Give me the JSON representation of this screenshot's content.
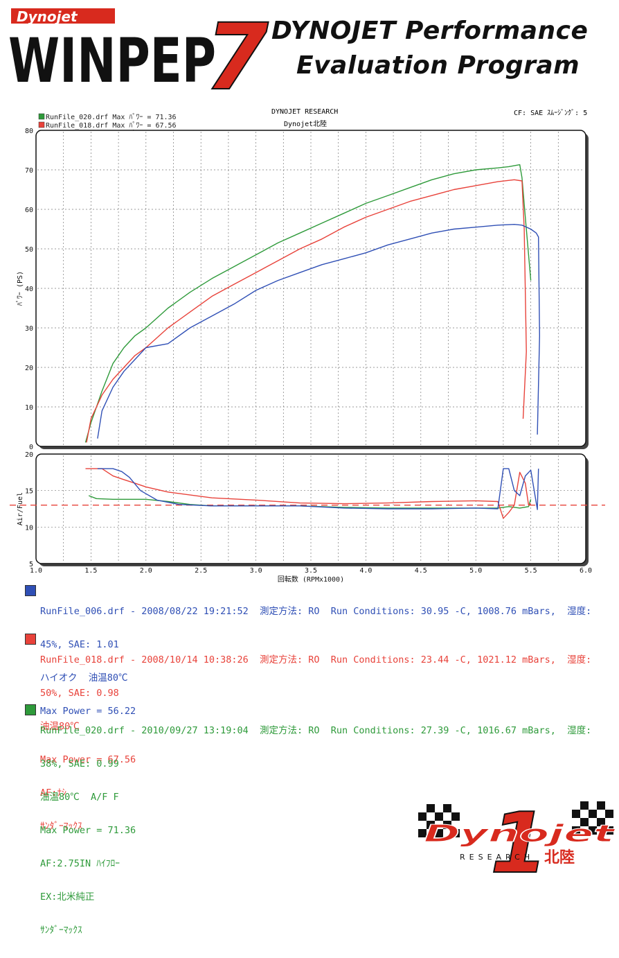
{
  "header": {
    "logo_small": "Dynojet",
    "logo_big": "WINPEP",
    "logo_number": "7",
    "tagline_line1": "DYNOJET Performance",
    "tagline_line2": "Evaluation Program"
  },
  "report": {
    "research": "DYNOJET  RESEARCH",
    "shop": "Dynojet北陸",
    "cf": "CF: SAE  ｽﾑｰｼﾞﾝｸﾞ: 5"
  },
  "legend": [
    {
      "label": "RunFile_020.drf Max ﾊﾟﾜｰ = 71.36",
      "color": "#2e9a3a"
    },
    {
      "label": "RunFile_018.drf Max ﾊﾟﾜｰ = 67.56",
      "color": "#e8423a"
    },
    {
      "label": "RunFile_006.drf Max ﾊﾟﾜｰ = 56.22",
      "color": "#2f4fb5"
    }
  ],
  "chart_data": [
    {
      "type": "line",
      "ylabel": "ﾊﾟﾜｰ (PS)",
      "xlim": [
        1.0,
        6.0
      ],
      "ylim": [
        0,
        80
      ],
      "grid": true,
      "y_ticks": [
        "0",
        "10",
        "20",
        "30",
        "40",
        "50",
        "60",
        "70",
        "80"
      ],
      "series": [
        {
          "name": "RunFile_020.drf",
          "color": "#2e9a3a",
          "x": [
            1.45,
            1.5,
            1.6,
            1.7,
            1.8,
            1.9,
            2.0,
            2.2,
            2.4,
            2.6,
            2.8,
            3.0,
            3.2,
            3.4,
            3.6,
            3.8,
            4.0,
            4.2,
            4.4,
            4.6,
            4.8,
            5.0,
            5.2,
            5.3,
            5.4,
            5.42,
            5.45,
            5.5
          ],
          "y": [
            1,
            6,
            14,
            21,
            25,
            28,
            30,
            35,
            39,
            42.5,
            45.5,
            48.5,
            51.5,
            54,
            56.5,
            59,
            61.5,
            63.5,
            65.5,
            67.5,
            69,
            70,
            70.5,
            70.8,
            71.3,
            68,
            58,
            42
          ]
        },
        {
          "name": "RunFile_018.drf",
          "color": "#e8423a",
          "x": [
            1.46,
            1.5,
            1.6,
            1.7,
            1.8,
            1.9,
            2.0,
            2.2,
            2.4,
            2.6,
            2.8,
            3.0,
            3.2,
            3.4,
            3.6,
            3.8,
            4.0,
            4.2,
            4.4,
            4.6,
            4.8,
            5.0,
            5.2,
            5.35,
            5.42,
            5.44,
            5.46,
            5.43
          ],
          "y": [
            1,
            7,
            13,
            17,
            20,
            23,
            25,
            30,
            34,
            38,
            41,
            44,
            47,
            50,
            52.5,
            55.5,
            58,
            60,
            62,
            63.5,
            65,
            66,
            67,
            67.5,
            67.2,
            55,
            24,
            7
          ]
        },
        {
          "name": "RunFile_006.drf",
          "color": "#2f4fb5",
          "x": [
            1.56,
            1.6,
            1.7,
            1.8,
            1.9,
            2.0,
            2.2,
            2.4,
            2.6,
            2.8,
            3.0,
            3.2,
            3.4,
            3.6,
            3.8,
            4.0,
            4.2,
            4.4,
            4.6,
            4.8,
            5.0,
            5.2,
            5.35,
            5.42,
            5.5,
            5.55,
            5.57,
            5.58,
            5.56
          ],
          "y": [
            2,
            9,
            15,
            19,
            22,
            25,
            26,
            30,
            33,
            36,
            39.5,
            42,
            44,
            46,
            47.5,
            49,
            51,
            52.5,
            54,
            55,
            55.5,
            56,
            56.2,
            56,
            55,
            54,
            53,
            28,
            3
          ]
        }
      ]
    },
    {
      "type": "line",
      "xlabel": "回転数 (RPMx1000)",
      "ylabel": "Air/Fuel",
      "xlim": [
        1.0,
        6.0
      ],
      "ylim": [
        5,
        20
      ],
      "grid": true,
      "x_ticks": [
        "1.0",
        "1.5",
        "2.0",
        "2.5",
        "3.0",
        "3.5",
        "4.0",
        "4.5",
        "5.0",
        "5.5",
        "6.0"
      ],
      "y_ticks": [
        "5",
        "10",
        "15",
        "20"
      ],
      "reference_line": {
        "y": 13.0,
        "color": "#e8423a",
        "style": "dashed"
      },
      "series": [
        {
          "name": "RunFile_020.drf",
          "color": "#2e9a3a",
          "x": [
            1.48,
            1.55,
            1.7,
            2.0,
            2.2,
            2.4,
            2.6,
            3.0,
            3.4,
            3.8,
            4.2,
            4.6,
            5.0,
            5.2,
            5.3,
            5.4,
            5.48,
            5.5
          ],
          "y": [
            14.3,
            13.9,
            13.8,
            13.8,
            13.5,
            13.1,
            12.9,
            12.9,
            12.9,
            12.7,
            12.6,
            12.6,
            12.6,
            12.6,
            12.8,
            12.6,
            12.8,
            13.8
          ]
        },
        {
          "name": "RunFile_018.drf",
          "color": "#e8423a",
          "x": [
            1.45,
            1.6,
            1.7,
            1.8,
            1.9,
            2.0,
            2.2,
            2.6,
            3.0,
            3.4,
            3.8,
            4.2,
            4.6,
            5.0,
            5.2,
            5.25,
            5.3,
            5.35,
            5.4,
            5.45,
            5.48,
            5.5
          ],
          "y": [
            18,
            18,
            17,
            16.5,
            16,
            15.5,
            14.8,
            14,
            13.7,
            13.3,
            13.2,
            13.3,
            13.5,
            13.6,
            13.5,
            11.2,
            12,
            13,
            17.5,
            16,
            13,
            13.2
          ]
        },
        {
          "name": "RunFile_006.drf",
          "color": "#2f4fb5",
          "x": [
            1.56,
            1.6,
            1.7,
            1.78,
            1.85,
            1.95,
            2.1,
            2.3,
            2.6,
            3.0,
            3.4,
            3.8,
            4.2,
            4.6,
            5.0,
            5.2,
            5.25,
            5.3,
            5.35,
            5.4,
            5.45,
            5.5,
            5.56,
            5.57
          ],
          "y": [
            18,
            18,
            18,
            17.6,
            16.8,
            15,
            13.7,
            13.1,
            12.9,
            12.9,
            12.9,
            12.6,
            12.5,
            12.5,
            12.6,
            12.5,
            18,
            18,
            15,
            14.3,
            17,
            17.8,
            12.4,
            18
          ]
        }
      ]
    }
  ],
  "runs": [
    {
      "color": "#2f4fb5",
      "lines": [
        "RunFile_006.drf - 2008/08/22 19:21:52  測定方法: RO  Run Conditions: 30.95 -C, 1008.76 mBars,  湿度:",
        "45%, SAE: 1.01",
        "ハイオク  油温80℃",
        "Max Power = 56.22"
      ]
    },
    {
      "color": "#e8423a",
      "lines": [
        "RunFile_018.drf - 2008/10/14 10:38:26  測定方法: RO  Run Conditions: 23.44 -C, 1021.12 mBars,  湿度:",
        "50%, SAE: 0.98",
        "油温80℃",
        "Max Power = 67.56",
        "AF:ﾅｼ",
        "ｻﾝﾀﾞｰﾏｯｸｽ"
      ]
    },
    {
      "color": "#2e9a3a",
      "lines": [
        "RunFile_020.drf - 2010/09/27 13:19:04  測定方法: RO  Run Conditions: 27.39 -C, 1016.67 mBars,  湿度:",
        "38%, SAE: 0.99",
        "油温80℃  A/F F",
        "Max Power = 71.36",
        "AF:2.75IN ﾊｲﾌﾛｰ",
        "EX:北米純正",
        "ｻﾝﾀﾞｰﾏｯｸｽ"
      ]
    }
  ],
  "brand": {
    "main": "Dynojet",
    "number": "1",
    "region": "北陸",
    "sub": "RESEARCH"
  }
}
